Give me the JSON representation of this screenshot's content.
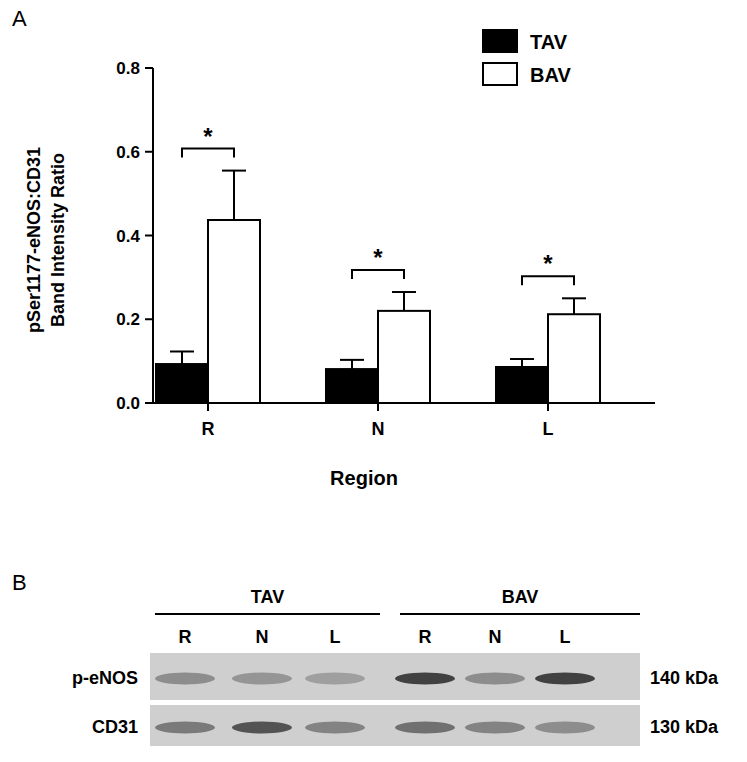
{
  "chart_data": {
    "type": "bar",
    "panel_label": "A",
    "x_label": "Region",
    "y_label": [
      "pSer1177-eNOS:CD31",
      "Band Intensity Ratio"
    ],
    "categories": [
      "R",
      "N",
      "L"
    ],
    "series": [
      {
        "name": "TAV",
        "color": "#000000",
        "values": [
          0.093,
          0.081,
          0.086
        ],
        "errors": [
          0.03,
          0.022,
          0.019
        ]
      },
      {
        "name": "BAV",
        "color": "#ffffff",
        "values": [
          0.437,
          0.22,
          0.212
        ],
        "errors": [
          0.118,
          0.045,
          0.038
        ]
      }
    ],
    "ylim": [
      0,
      0.8
    ],
    "yticks": [
      {
        "value": 0,
        "label": "0.0"
      },
      {
        "value": 0.2,
        "label": "0.2"
      },
      {
        "value": 0.4,
        "label": "0.4"
      },
      {
        "value": 0.6,
        "label": "0.6"
      },
      {
        "value": 0.8,
        "label": "0.8"
      }
    ],
    "legend": "top-right",
    "annotations": [
      {
        "text": "*",
        "category": "R"
      },
      {
        "text": "*",
        "category": "N"
      },
      {
        "text": "*",
        "category": "L"
      }
    ]
  },
  "blot": {
    "panel_label": "B",
    "groups": [
      {
        "label": "TAV",
        "lanes": [
          "R",
          "N",
          "L"
        ]
      },
      {
        "label": "BAV",
        "lanes": [
          "R",
          "N",
          "L"
        ]
      }
    ],
    "rows": [
      {
        "label": "p-eNOS",
        "size": "140 kDa",
        "bands": [
          0.35,
          0.3,
          0.25,
          0.75,
          0.35,
          0.75
        ]
      },
      {
        "label": "CD31",
        "size": "130 kDa",
        "bands": [
          0.45,
          0.65,
          0.4,
          0.5,
          0.4,
          0.35
        ]
      }
    ]
  }
}
